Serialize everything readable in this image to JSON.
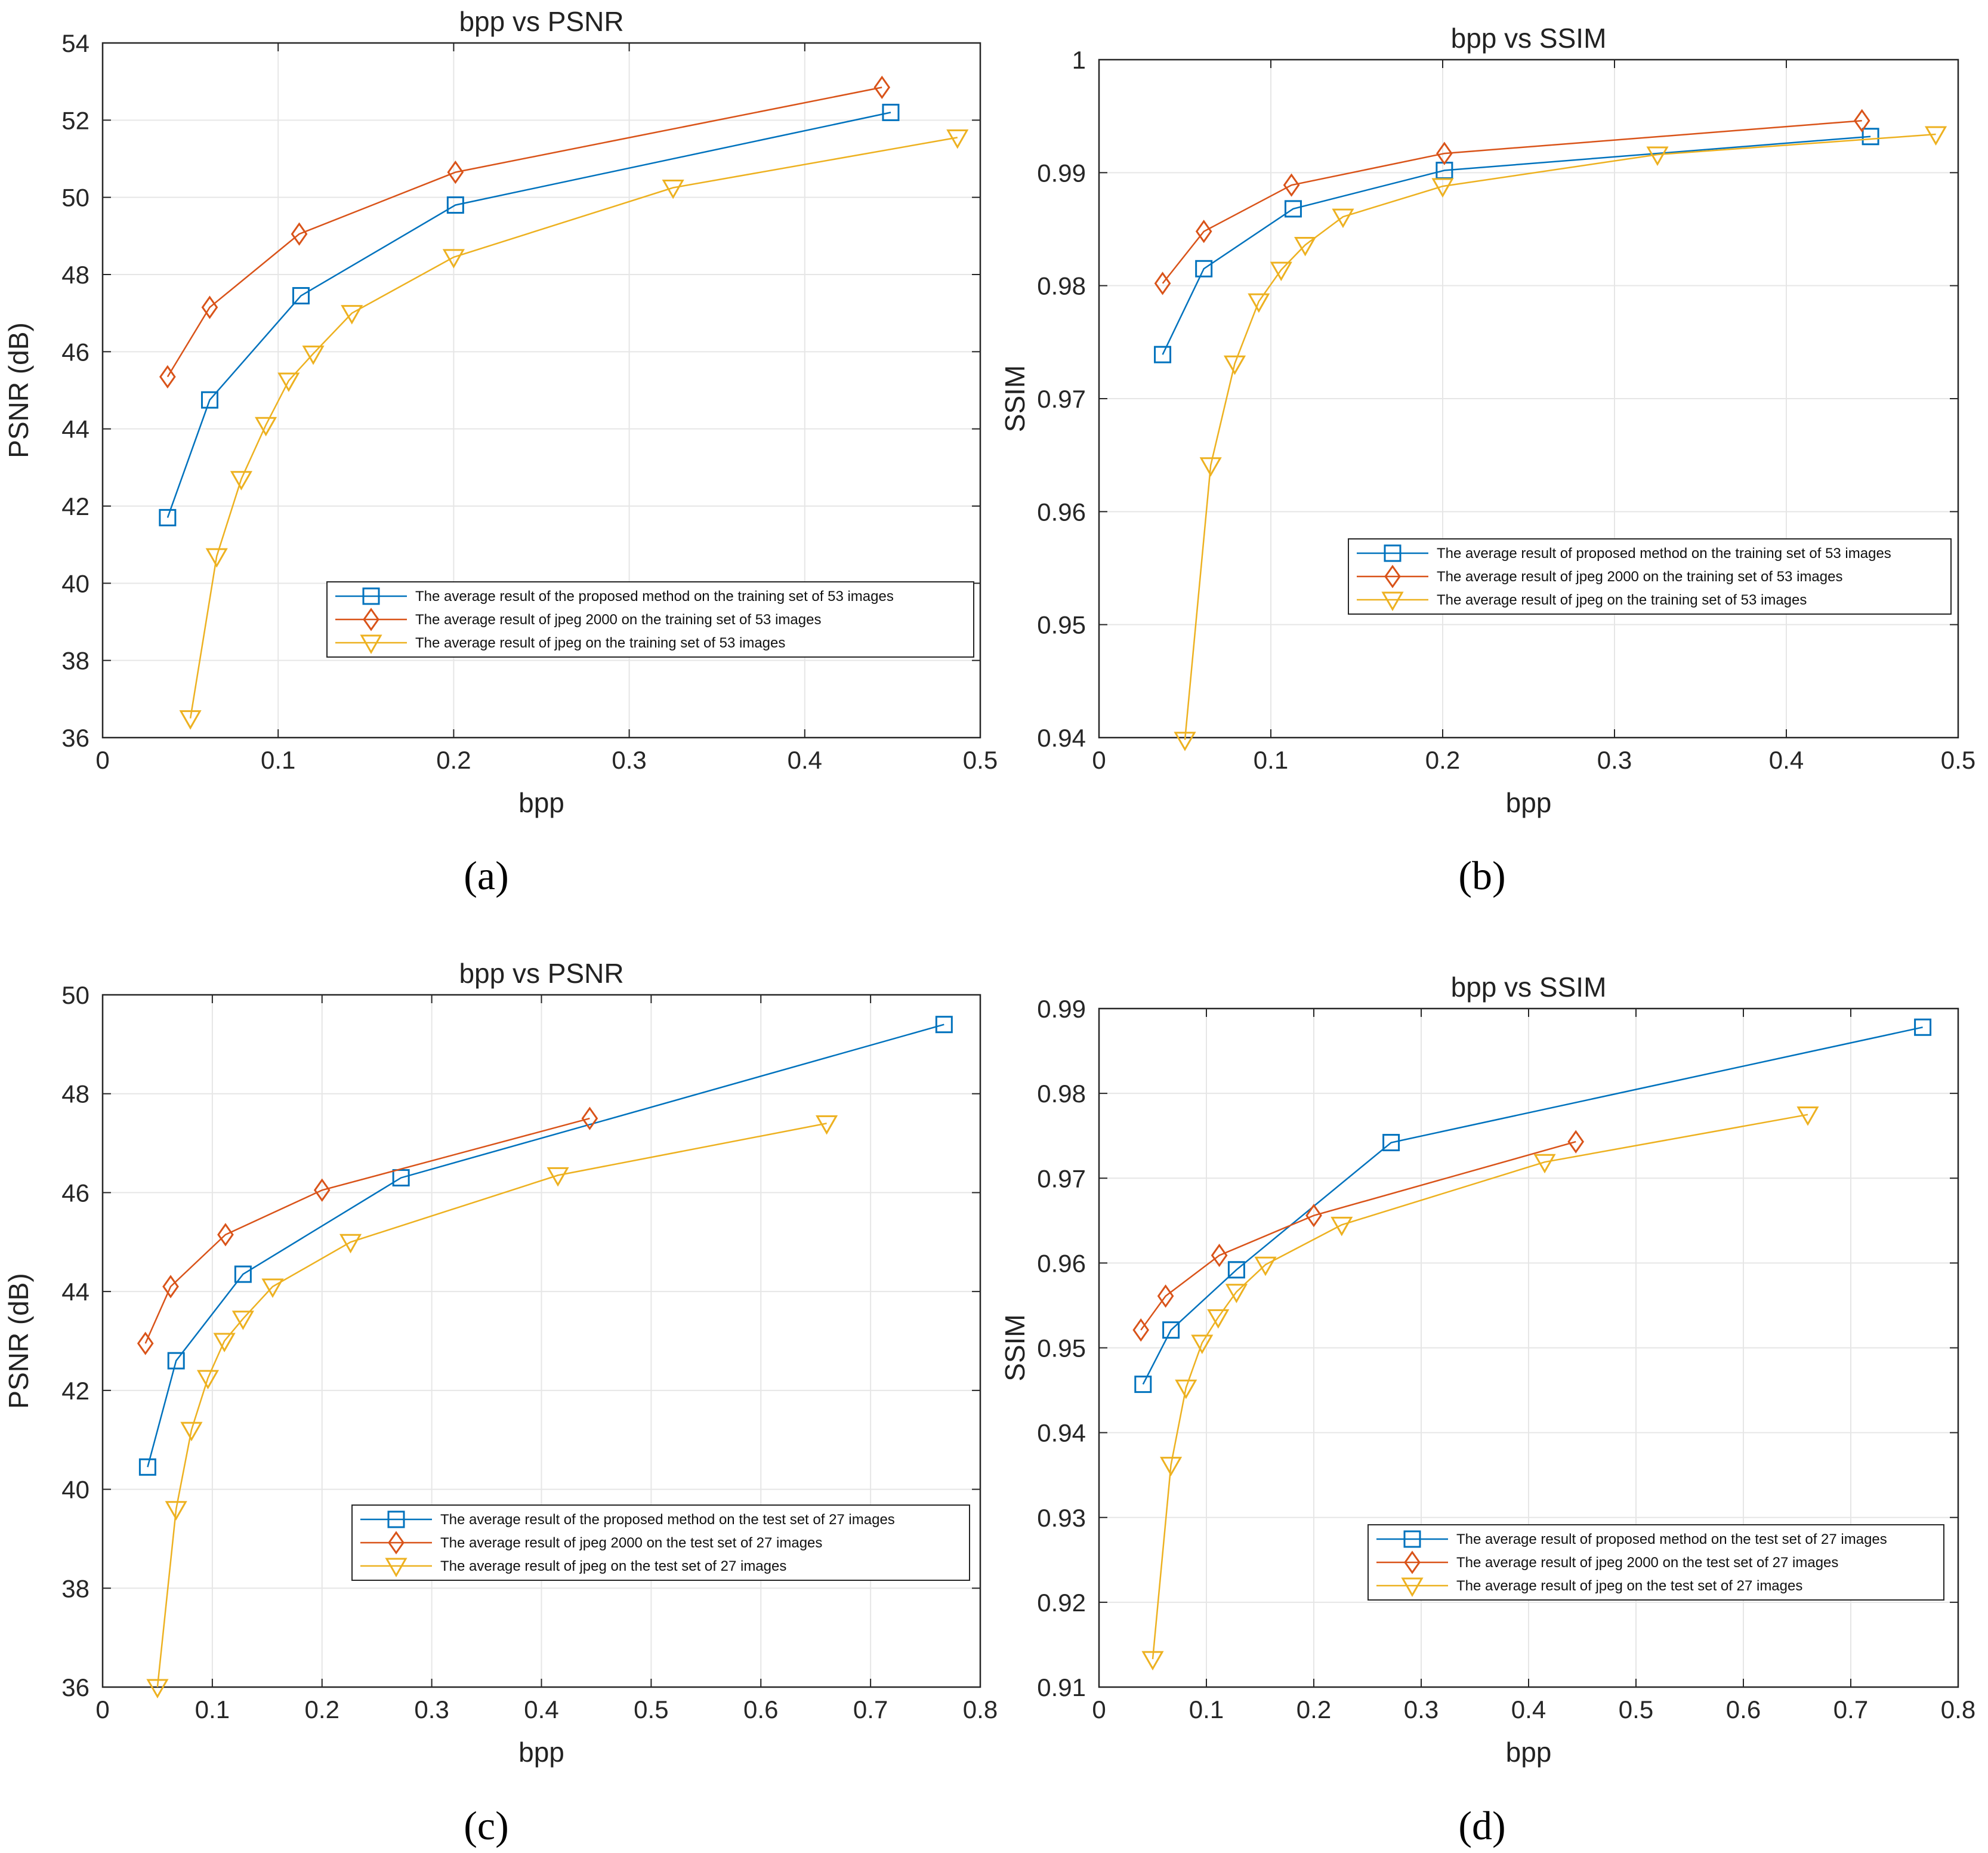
{
  "colors": {
    "proposed": "#0072BD",
    "jpeg2000": "#D95319",
    "jpeg": "#EDB120",
    "grid": "#e6e6e6",
    "axis": "#262626"
  },
  "chart_data": [
    {
      "type": "line",
      "panel": "(a)",
      "title": "bpp vs PSNR",
      "xlabel": "bpp",
      "ylabel": "PSNR (dB)",
      "xlim": [
        0,
        0.5
      ],
      "ylim": [
        36,
        54
      ],
      "xticks": [
        "0",
        "0.1",
        "0.2",
        "0.3",
        "0.4",
        "0.5"
      ],
      "yticks": [
        "36",
        "38",
        "40",
        "42",
        "44",
        "46",
        "48",
        "50",
        "52",
        "54"
      ],
      "grid": true,
      "legend_position": "bottom-right",
      "series": [
        {
          "name": "The average result of the proposed method on the training set of 53 images",
          "marker": "square",
          "color_key": "proposed",
          "x": [
            0.037,
            0.061,
            0.113,
            0.201,
            0.449
          ],
          "y": [
            41.7,
            44.75,
            47.45,
            49.8,
            52.2
          ]
        },
        {
          "name": "The average result of jpeg 2000 on the training set of 53 images",
          "marker": "diamond",
          "color_key": "jpeg2000",
          "x": [
            0.037,
            0.061,
            0.112,
            0.201,
            0.444
          ],
          "y": [
            45.35,
            47.15,
            49.05,
            50.65,
            52.85
          ]
        },
        {
          "name": "The average result of jpeg on the training set of 53 images",
          "marker": "triangle-down",
          "color_key": "jpeg",
          "x": [
            0.05,
            0.065,
            0.079,
            0.093,
            0.106,
            0.12,
            0.142,
            0.2,
            0.325,
            0.487
          ],
          "y": [
            36.5,
            40.7,
            42.7,
            44.1,
            45.25,
            45.95,
            47.0,
            48.45,
            50.25,
            51.55
          ]
        }
      ]
    },
    {
      "type": "line",
      "panel": "(b)",
      "title": "bpp vs SSIM",
      "xlabel": "bpp",
      "ylabel": "SSIM",
      "xlim": [
        0,
        0.5
      ],
      "ylim": [
        0.94,
        1.0
      ],
      "xticks": [
        "0",
        "0.1",
        "0.2",
        "0.3",
        "0.4",
        "0.5"
      ],
      "yticks": [
        "0.94",
        "0.95",
        "0.96",
        "0.97",
        "0.98",
        "0.99",
        "1"
      ],
      "grid": true,
      "legend_position": "middle-right",
      "series": [
        {
          "name": "The average result of proposed method on the training set of 53 images",
          "marker": "square",
          "color_key": "proposed",
          "x": [
            0.037,
            0.061,
            0.113,
            0.201,
            0.449
          ],
          "y": [
            0.9739,
            0.9815,
            0.9868,
            0.9902,
            0.9932
          ]
        },
        {
          "name": "The average result of jpeg 2000 on the training set of 53 images",
          "marker": "diamond",
          "color_key": "jpeg2000",
          "x": [
            0.037,
            0.061,
            0.112,
            0.201,
            0.444
          ],
          "y": [
            0.9802,
            0.9848,
            0.9889,
            0.9917,
            0.9946
          ]
        },
        {
          "name": "The average result of jpeg on the training set of 53 images",
          "marker": "triangle-down",
          "color_key": "jpeg",
          "x": [
            0.05,
            0.065,
            0.079,
            0.093,
            0.106,
            0.12,
            0.142,
            0.2,
            0.325,
            0.487
          ],
          "y": [
            0.9398,
            0.9641,
            0.9731,
            0.9786,
            0.9814,
            0.9836,
            0.9861,
            0.9888,
            0.9916,
            0.9934
          ]
        }
      ]
    },
    {
      "type": "line",
      "panel": "(c)",
      "title": "bpp vs PSNR",
      "xlabel": "bpp",
      "ylabel": "PSNR (dB)",
      "xlim": [
        0,
        0.8
      ],
      "ylim": [
        36,
        50
      ],
      "xticks": [
        "0",
        "0.1",
        "0.2",
        "0.3",
        "0.4",
        "0.5",
        "0.6",
        "0.7",
        "0.8"
      ],
      "yticks": [
        "36",
        "38",
        "40",
        "42",
        "44",
        "46",
        "48",
        "50"
      ],
      "grid": true,
      "legend_position": "bottom-right",
      "series": [
        {
          "name": "The average result of the proposed method on the test set of 27 images",
          "marker": "square",
          "color_key": "proposed",
          "x": [
            0.041,
            0.067,
            0.128,
            0.272,
            0.767
          ],
          "y": [
            40.45,
            42.6,
            44.35,
            46.3,
            49.4
          ]
        },
        {
          "name": "The average result of jpeg 2000 on the test set of 27 images",
          "marker": "diamond",
          "color_key": "jpeg2000",
          "x": [
            0.039,
            0.062,
            0.112,
            0.2,
            0.444
          ],
          "y": [
            42.95,
            44.1,
            45.15,
            46.05,
            47.5
          ]
        },
        {
          "name": "The average result of jpeg on the test set of 27 images",
          "marker": "triangle-down",
          "color_key": "jpeg",
          "x": [
            0.05,
            0.067,
            0.081,
            0.096,
            0.111,
            0.128,
            0.155,
            0.226,
            0.415,
            0.66
          ],
          "y": [
            36.0,
            39.6,
            41.2,
            42.25,
            43.0,
            43.45,
            44.1,
            45.0,
            46.35,
            47.4
          ]
        }
      ]
    },
    {
      "type": "line",
      "panel": "(d)",
      "title": "bpp vs SSIM",
      "xlabel": "bpp",
      "ylabel": "SSIM",
      "xlim": [
        0,
        0.8
      ],
      "ylim": [
        0.91,
        0.99
      ],
      "xticks": [
        "0",
        "0.1",
        "0.2",
        "0.3",
        "0.4",
        "0.5",
        "0.6",
        "0.7",
        "0.8"
      ],
      "yticks": [
        "0.91",
        "0.92",
        "0.93",
        "0.94",
        "0.95",
        "0.96",
        "0.97",
        "0.98",
        "0.99"
      ],
      "grid": true,
      "legend_position": "bottom-right",
      "series": [
        {
          "name": "The average result of proposed method on the test set of 27 images",
          "marker": "square",
          "color_key": "proposed",
          "x": [
            0.041,
            0.067,
            0.128,
            0.272,
            0.767
          ],
          "y": [
            0.9457,
            0.9521,
            0.9592,
            0.9742,
            0.9878
          ]
        },
        {
          "name": "The average result of jpeg 2000 on the test set of 27 images",
          "marker": "diamond",
          "color_key": "jpeg2000",
          "x": [
            0.039,
            0.062,
            0.112,
            0.2,
            0.444
          ],
          "y": [
            0.9521,
            0.9561,
            0.9609,
            0.9656,
            0.9743
          ]
        },
        {
          "name": "The average result of jpeg on the test set of 27 images",
          "marker": "triangle-down",
          "color_key": "jpeg",
          "x": [
            0.05,
            0.067,
            0.081,
            0.096,
            0.111,
            0.128,
            0.155,
            0.226,
            0.415,
            0.66
          ],
          "y": [
            0.9133,
            0.9362,
            0.9453,
            0.9506,
            0.9536,
            0.9566,
            0.9598,
            0.9645,
            0.9719,
            0.9775
          ]
        }
      ]
    }
  ]
}
